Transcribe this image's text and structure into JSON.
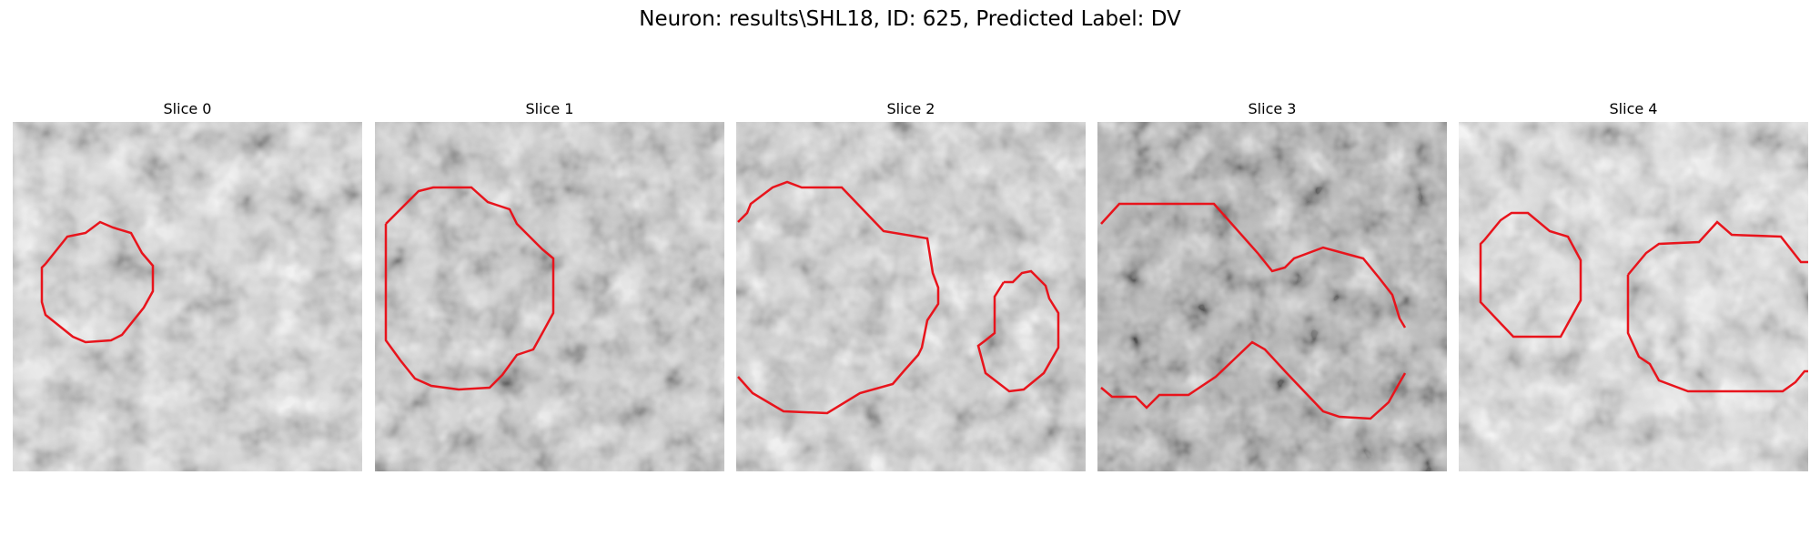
{
  "figure": {
    "title": "Neuron: results\\SHL18, ID: 625, Predicted Label: DV",
    "contour_color": "#e8141c",
    "colormap": "grayscale",
    "slices": [
      {
        "title": "Slice 0"
      },
      {
        "title": "Slice 1"
      },
      {
        "title": "Slice 2"
      },
      {
        "title": "Slice 3"
      },
      {
        "title": "Slice 4"
      }
    ]
  }
}
